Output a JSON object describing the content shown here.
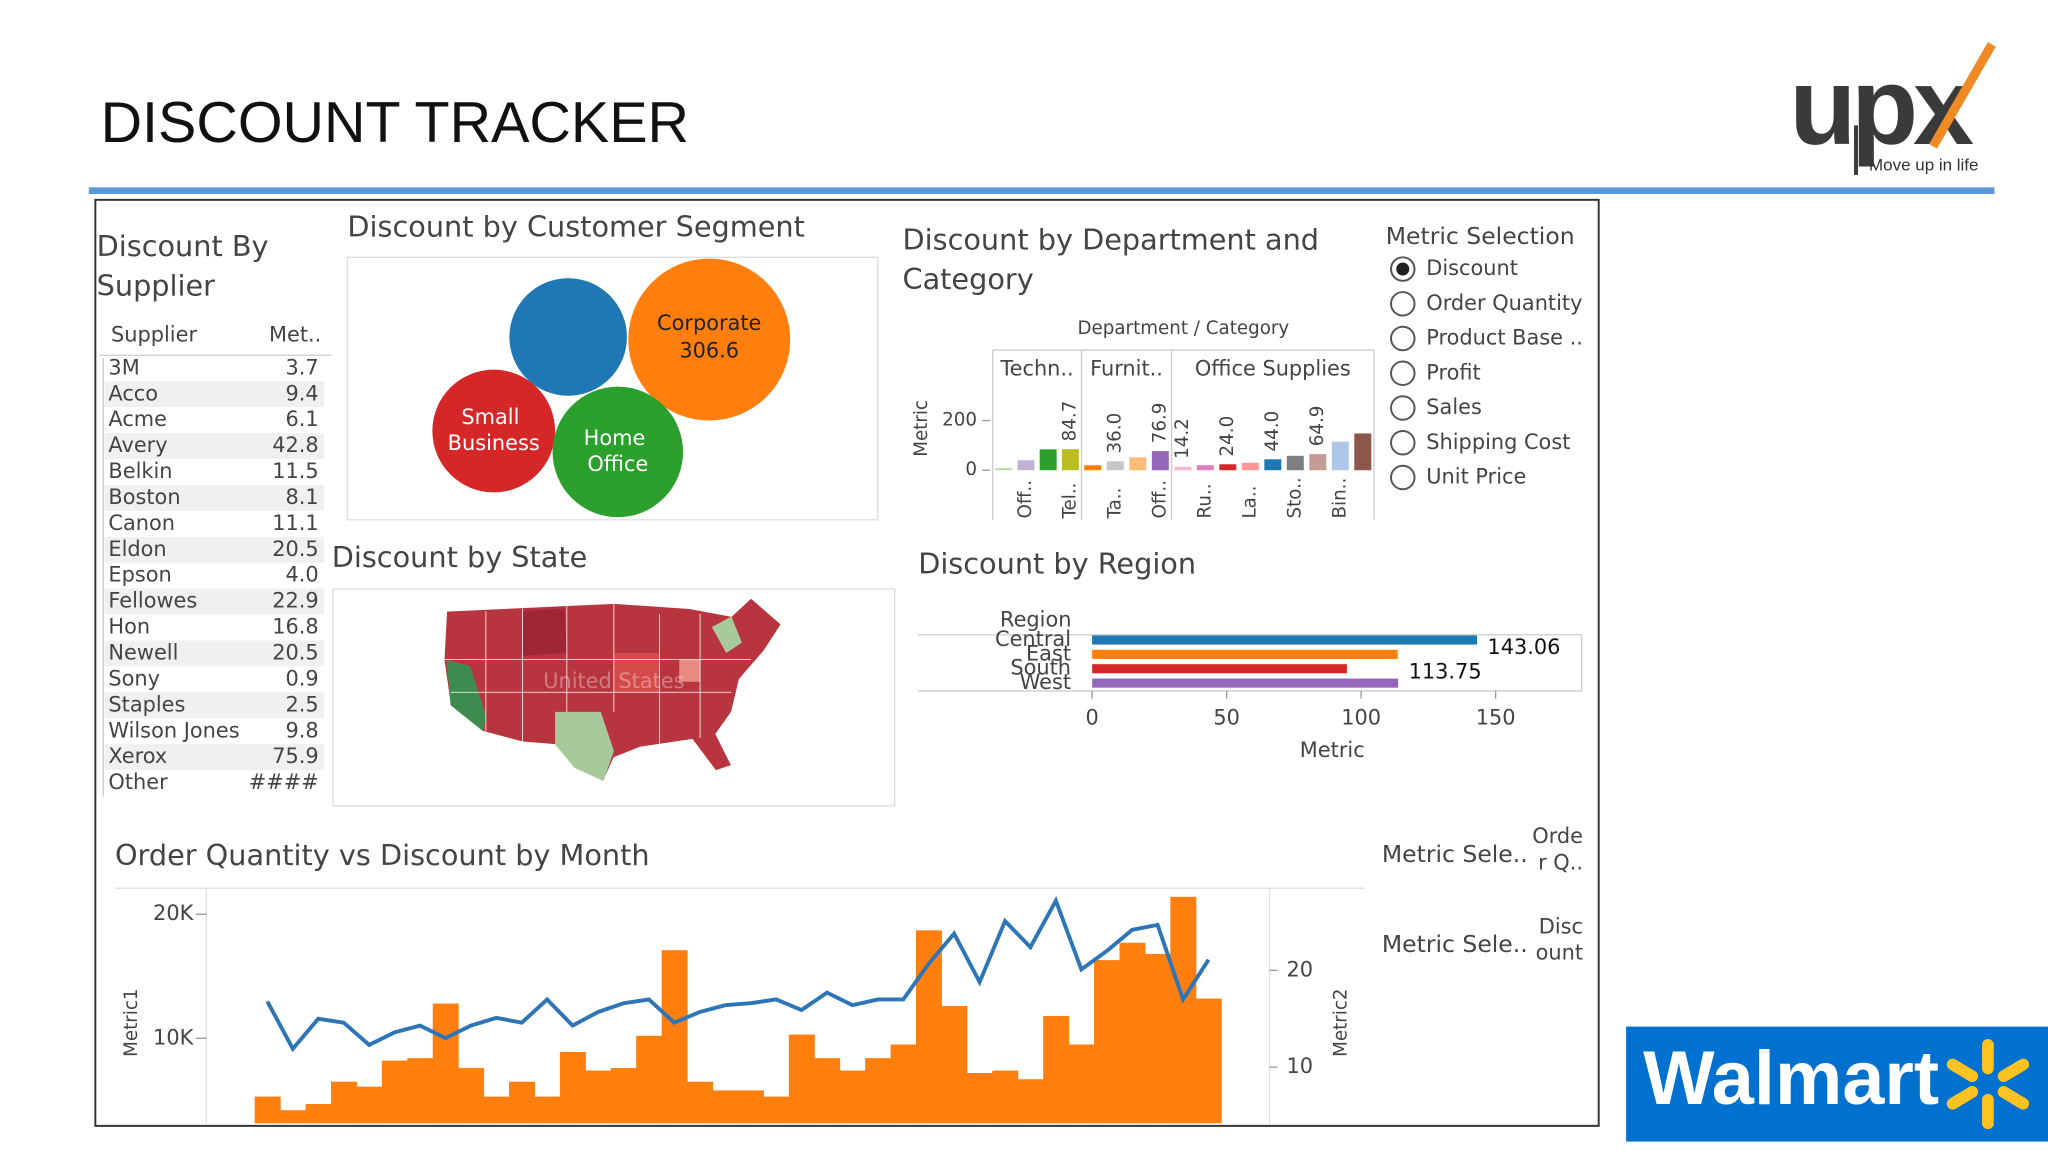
{
  "header": {
    "title": "DISCOUNT TRACKER"
  },
  "logos": {
    "upx": "upx",
    "tagline": "Move up in life",
    "walmart": "Walmart"
  },
  "supplier": {
    "title": "Discount By Supplier",
    "columns": [
      "Supplier",
      "Met.."
    ],
    "rows": [
      [
        "3M",
        "3.7"
      ],
      [
        "Acco",
        "9.4"
      ],
      [
        "Acme",
        "6.1"
      ],
      [
        "Avery",
        "42.8"
      ],
      [
        "Belkin",
        "11.5"
      ],
      [
        "Boston",
        "8.1"
      ],
      [
        "Canon",
        "11.1"
      ],
      [
        "Eldon",
        "20.5"
      ],
      [
        "Epson",
        "4.0"
      ],
      [
        "Fellowes",
        "22.9"
      ],
      [
        "Hon",
        "16.8"
      ],
      [
        "Newell",
        "20.5"
      ],
      [
        "Sony",
        "0.9"
      ],
      [
        "Staples",
        "2.5"
      ],
      [
        "Wilson Jones",
        "9.8"
      ],
      [
        "Xerox",
        "75.9"
      ],
      [
        "Other",
        "####"
      ]
    ]
  },
  "segment": {
    "type": "bubble",
    "title": "Discount by Customer Segment",
    "bubbles": [
      {
        "name": "Corporate",
        "value": 306.6,
        "color": "#ff7f0e"
      },
      {
        "name": null,
        "value": 161.5,
        "color": "#1f77b4"
      },
      {
        "name": "Small Business",
        "value": 176,
        "color": "#d62728"
      },
      {
        "name": "Home Office",
        "value": 199,
        "color": "#2ca02c"
      }
    ],
    "value_labels": [
      "306.6",
      null,
      null,
      null
    ]
  },
  "department": {
    "type": "bar",
    "title": "Discount by Department and Category",
    "header": "Department / Category",
    "y_label": "Metric",
    "ylim": [
      -63,
      305
    ],
    "yticks": [
      200,
      0
    ],
    "groups": [
      {
        "name": "Techn..",
        "categories": [
          null,
          "Off..",
          null,
          "Tel.."
        ],
        "values": [
          8,
          40,
          84,
          84.7
        ],
        "value_labels": [
          null,
          null,
          null,
          "84.7"
        ],
        "colors": [
          "#b5d99c",
          "#c5b0d5",
          "#2ca02c",
          "#bcbd22"
        ]
      },
      {
        "name": "Furnit..",
        "categories": [
          null,
          "Ta..",
          null,
          "Off.."
        ],
        "values": [
          20,
          36.0,
          52,
          76.9
        ],
        "value_labels": [
          null,
          "36.0",
          null,
          "76.9"
        ],
        "colors": [
          "#ff7f0e",
          "#c7c7c7",
          "#ffbb78",
          "#9467bd"
        ]
      },
      {
        "name": "Office Supplies",
        "categories": [
          null,
          "Ru..",
          null,
          "La..",
          null,
          "Sto..",
          null,
          "Bin..",
          null
        ],
        "values": [
          14.2,
          20,
          24.0,
          30,
          44.0,
          58,
          64.9,
          115,
          148
        ],
        "value_labels": [
          "14.2",
          null,
          "24.0",
          null,
          "44.0",
          null,
          "64.9",
          null,
          null
        ],
        "colors": [
          "#f7b6d2",
          "#e377c2",
          "#d62728",
          "#ff9896",
          "#1f77b4",
          "#7f7f7f",
          "#c49c94",
          "#aec7e8",
          "#8c564b"
        ]
      }
    ]
  },
  "metric_selection": {
    "title": "Metric Selection",
    "options": [
      "Discount",
      "Order Quantity",
      "Product Base ..",
      "Profit",
      "Sales",
      "Shipping Cost",
      "Unit Price"
    ],
    "selected": 0
  },
  "state_map": {
    "title": "Discount by State",
    "watermark": "United States"
  },
  "region": {
    "type": "hbar",
    "title": "Discount by Region",
    "y_label": "Region",
    "x_label": "Metric",
    "categories": [
      "Central",
      "East",
      "South",
      "West"
    ],
    "values": [
      143.06,
      113.6,
      94.7,
      113.75
    ],
    "value_labels": [
      "143.06",
      null,
      null,
      "113.75"
    ],
    "colors": [
      "#1f77b4",
      "#ff7f0e",
      "#d62728",
      "#9467bd"
    ],
    "xlim": [
      -3,
      182
    ],
    "xticks": [
      0,
      50,
      100,
      150
    ]
  },
  "monthly": {
    "type": "combo",
    "title": "Order Quantity vs Discount by Month",
    "y_label": "Metric1",
    "y2_label": "Metric2",
    "ylim": [
      3150,
      22100
    ],
    "yticks": [
      {
        "value": 20000,
        "label": "20K"
      },
      {
        "value": 10000,
        "label": "10K"
      }
    ],
    "y2lim": [
      4.2,
      28.5
    ],
    "y2ticks": [
      20,
      10
    ],
    "categories": [
      null,
      null,
      null,
      null,
      null,
      null,
      null,
      null,
      null,
      null,
      null,
      null,
      null,
      null,
      null,
      null,
      null,
      null,
      null,
      null,
      null,
      null,
      null,
      null,
      null,
      null,
      null,
      null,
      null,
      null,
      null,
      null,
      null,
      null,
      null,
      null,
      null,
      null
    ],
    "series": [
      {
        "type": "bar",
        "color": "#ff7f0e",
        "values": [
          5300,
          4200,
          4700,
          6500,
          6100,
          8200,
          8400,
          12800,
          7600,
          5300,
          6500,
          5300,
          8900,
          7400,
          7600,
          10200,
          17100,
          6500,
          5800,
          5800,
          5300,
          10300,
          8400,
          7400,
          8400,
          9500,
          18700,
          12600,
          7200,
          7400,
          6700,
          11800,
          9500,
          16300,
          17700,
          16800,
          21400,
          13200
        ]
      },
      {
        "type": "line",
        "color": "#2e75b6",
        "axis": "y2",
        "values": [
          16.8,
          11.9,
          15.0,
          14.6,
          12.3,
          13.6,
          14.3,
          13.0,
          14.3,
          15.1,
          14.6,
          17.0,
          14.3,
          15.7,
          16.6,
          17.0,
          14.6,
          15.7,
          16.4,
          16.6,
          17.0,
          15.9,
          17.7,
          16.4,
          17.0,
          17.0,
          20.7,
          23.8,
          18.8,
          25.1,
          22.4,
          27.2,
          20.1,
          22.0,
          24.2,
          24.7,
          17.0,
          21.1
        ]
      }
    ]
  },
  "metric_controls": [
    {
      "label": "Metric Sele..",
      "value": "Order Q.."
    },
    {
      "label": "Metric Sele..",
      "value": "Discount"
    }
  ]
}
